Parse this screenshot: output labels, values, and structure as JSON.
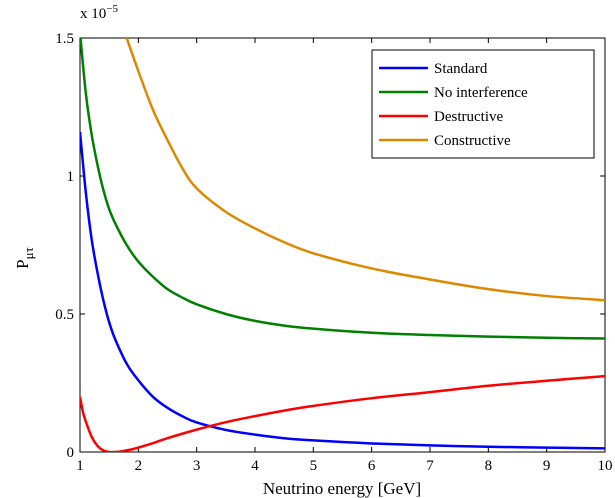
{
  "chart_data": {
    "type": "line",
    "xlabel": "Neutrino energy [GeV]",
    "ylabel": "P",
    "ylabel_subscript": "μτ",
    "exponent_label": "x 10",
    "exponent_power": "−5",
    "xlim": [
      1,
      10
    ],
    "ylim": [
      0,
      1.5
    ],
    "xticks": [
      1,
      2,
      3,
      4,
      5,
      6,
      7,
      8,
      9,
      10
    ],
    "xtick_labels": [
      "1",
      "2",
      "3",
      "4",
      "5",
      "6",
      "7",
      "8",
      "9",
      "10"
    ],
    "yticks": [
      0,
      0.5,
      1,
      1.5
    ],
    "ytick_labels": [
      "0",
      "0.5",
      "1",
      "1.5"
    ],
    "grid": false,
    "legend_position": "top-right",
    "series": [
      {
        "name": "Standard",
        "color": "#0000ff",
        "x": [
          1.0,
          1.1,
          1.2,
          1.3,
          1.4,
          1.5,
          1.6,
          1.8,
          2.0,
          2.25,
          2.5,
          2.75,
          3.0,
          3.5,
          4.0,
          4.5,
          5.0,
          6.0,
          7.0,
          8.0,
          9.0,
          10.0
        ],
        "values": [
          1.16,
          0.94,
          0.77,
          0.65,
          0.55,
          0.47,
          0.41,
          0.32,
          0.26,
          0.2,
          0.16,
          0.13,
          0.107,
          0.08,
          0.063,
          0.05,
          0.042,
          0.031,
          0.024,
          0.019,
          0.016,
          0.013
        ]
      },
      {
        "name": "No interference",
        "color": "#008000",
        "x": [
          1.0,
          1.1,
          1.2,
          1.3,
          1.4,
          1.5,
          1.6,
          1.8,
          2.0,
          2.25,
          2.5,
          2.75,
          3.0,
          3.5,
          4.0,
          4.5,
          5.0,
          6.0,
          7.0,
          8.0,
          9.0,
          10.0
        ],
        "values": [
          1.52,
          1.3,
          1.15,
          1.04,
          0.95,
          0.88,
          0.83,
          0.75,
          0.69,
          0.635,
          0.59,
          0.56,
          0.535,
          0.5,
          0.475,
          0.458,
          0.447,
          0.432,
          0.424,
          0.418,
          0.414,
          0.411
        ]
      },
      {
        "name": "Destructive",
        "color": "#ff0000",
        "x": [
          1.0,
          1.05,
          1.1,
          1.2,
          1.3,
          1.4,
          1.5,
          1.6,
          1.7,
          1.8,
          1.9,
          2.0,
          2.25,
          2.5,
          3.0,
          3.5,
          4.0,
          4.5,
          5.0,
          6.0,
          7.0,
          8.0,
          9.0,
          10.0
        ],
        "values": [
          0.2,
          0.145,
          0.11,
          0.055,
          0.022,
          0.006,
          0.0,
          0.0,
          0.002,
          0.006,
          0.01,
          0.016,
          0.032,
          0.05,
          0.081,
          0.108,
          0.13,
          0.15,
          0.167,
          0.195,
          0.217,
          0.24,
          0.258,
          0.275
        ]
      },
      {
        "name": "Constructive",
        "color": "#dd8800",
        "x": [
          1.8,
          2.0,
          2.25,
          2.5,
          2.75,
          3.0,
          3.5,
          4.0,
          4.5,
          5.0,
          6.0,
          7.0,
          8.0,
          9.0,
          10.0
        ],
        "values": [
          1.5,
          1.38,
          1.24,
          1.13,
          1.03,
          0.955,
          0.87,
          0.81,
          0.76,
          0.72,
          0.665,
          0.625,
          0.59,
          0.565,
          0.55
        ]
      }
    ]
  }
}
